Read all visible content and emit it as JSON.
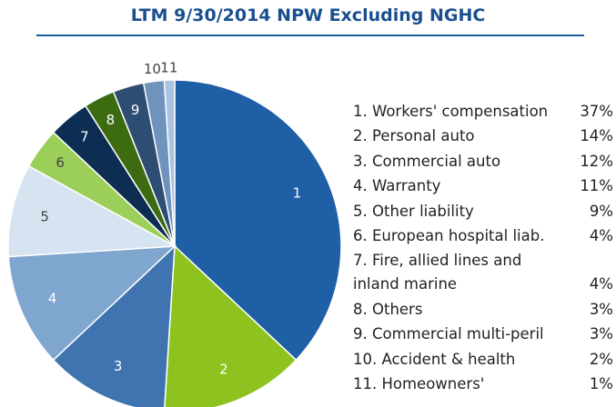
{
  "chart_data": {
    "type": "pie",
    "title": "LTM 9/30/2014 NPW Excluding NGHC",
    "slice_labels": [
      "1",
      "2",
      "3",
      "4",
      "5",
      "6",
      "7",
      "8",
      "9",
      "10",
      "11"
    ],
    "categories": [
      "1. Workers' compensation",
      "2. Personal auto",
      "3. Commercial auto",
      "4. Warranty",
      "5. Other liability",
      "6. European hospital liab.",
      "7. Fire, allied lines and inland marine",
      "8. Others",
      "9. Commercial multi-peril",
      "10. Accident & health",
      "11. Homeowners'"
    ],
    "values": [
      37,
      14,
      12,
      11,
      9,
      4,
      4,
      3,
      3,
      2,
      1
    ],
    "value_labels": [
      "37%",
      "14%",
      "12%",
      "11%",
      "9%",
      "4%",
      "4%",
      "3%",
      "3%",
      "2%",
      "1%"
    ],
    "colors": [
      "#1f5fa6",
      "#8dc21f",
      "#3f74b0",
      "#7ea6cf",
      "#d6e3f0",
      "#9ccf5a",
      "#0e2d52",
      "#3d6b12",
      "#2e4d73",
      "#6f93bd",
      "#a8c4e0"
    ]
  }
}
